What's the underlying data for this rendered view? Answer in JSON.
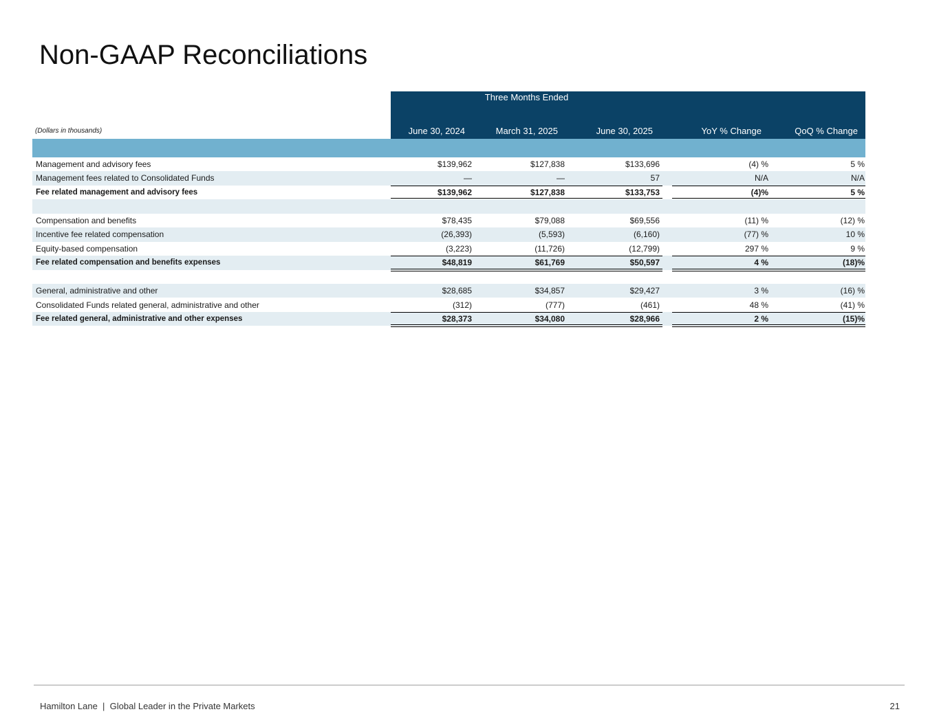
{
  "title": "Non-GAAP Reconciliations",
  "table": {
    "group_header": "Three Months Ended",
    "unit_note": "(Dollars in thousands)",
    "columns": [
      "June 30, 2024",
      "March 31, 2025",
      "June 30, 2025",
      "YoY % Change",
      "QoQ % Change"
    ],
    "sections": [
      {
        "rows": [
          {
            "label": "Management and advisory fees",
            "values": [
              "$139,962",
              "$127,838",
              "$133,696",
              "(4) %",
              "5 %"
            ]
          },
          {
            "label": "Management fees related to Consolidated Funds",
            "values": [
              "—",
              "—",
              "57",
              "N/A",
              "N/A"
            ]
          }
        ],
        "total": {
          "label": "Fee related management and advisory fees",
          "values": [
            "$139,962",
            "$127,838",
            "$133,753",
            "(4)%",
            "5 %"
          ]
        }
      },
      {
        "rows": [
          {
            "label": "Compensation and benefits",
            "values": [
              "$78,435",
              "$79,088",
              "$69,556",
              "(11) %",
              "(12) %"
            ]
          },
          {
            "label": "Incentive fee related compensation",
            "values": [
              "(26,393)",
              "(5,593)",
              "(6,160)",
              "(77) %",
              "10 %"
            ]
          },
          {
            "label": "Equity-based compensation",
            "values": [
              "(3,223)",
              "(11,726)",
              "(12,799)",
              "297 %",
              "9 %"
            ]
          }
        ],
        "total": {
          "label": "Fee related compensation and benefits expenses",
          "values": [
            "$48,819",
            "$61,769",
            "$50,597",
            "4 %",
            "(18)%"
          ]
        }
      },
      {
        "rows": [
          {
            "label": "General, administrative and other",
            "values": [
              "$28,685",
              "$34,857",
              "$29,427",
              "3 %",
              "(16) %"
            ]
          },
          {
            "label": "Consolidated Funds related general, administrative and other",
            "values": [
              "(312)",
              "(777)",
              "(461)",
              "48 %",
              "(41) %"
            ]
          }
        ],
        "total": {
          "label": "Fee related general, administrative and other expenses",
          "values": [
            "$28,373",
            "$34,080",
            "$28,966",
            "2 %",
            "(15)%"
          ]
        }
      }
    ]
  },
  "footer": {
    "text": "Hamilton Lane  |  Global Leader in the Private Markets",
    "page": "21"
  }
}
